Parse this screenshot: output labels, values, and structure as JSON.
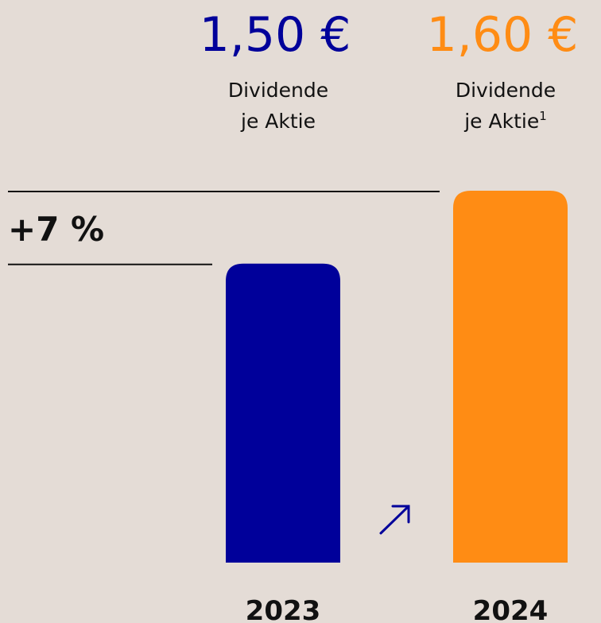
{
  "chart_data": {
    "type": "bar",
    "categories": [
      "2023",
      "2024"
    ],
    "values": [
      1.5,
      1.6
    ],
    "value_labels": [
      "1,50 €",
      "1,60 €"
    ],
    "colors": [
      "#00009a",
      "#ff8c14"
    ],
    "captions": [
      {
        "lines": [
          "Dividende",
          "je Aktie"
        ]
      },
      {
        "lines": [
          "Dividende",
          "je Aktie"
        ],
        "footnote": 1
      }
    ],
    "annotation": "+7 %",
    "ylim": [
      1.09,
      1.6
    ]
  }
}
